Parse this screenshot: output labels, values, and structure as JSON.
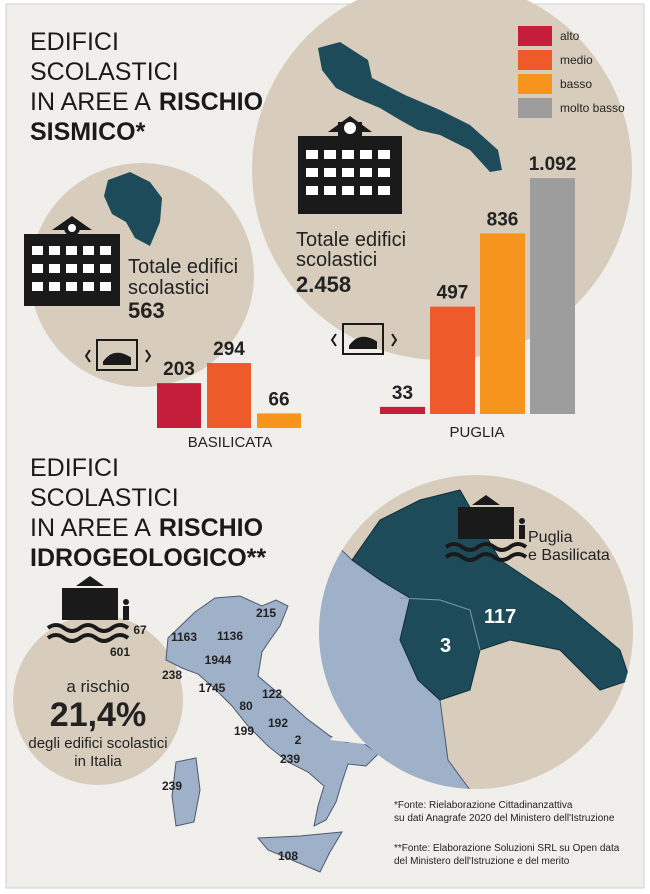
{
  "seismic_title": [
    "EDIFICI",
    "SCOLASTICI",
    "IN AREE A",
    "RISCHIO",
    "SISMICO*"
  ],
  "chart_data": [
    {
      "type": "bar",
      "region": "BASILICATA",
      "categories": [
        null,
        null,
        null
      ],
      "values": [
        203,
        294,
        66
      ],
      "colors": [
        "#c41e3a",
        "#ef5a2a",
        "#f7941d"
      ],
      "total_label": [
        "Totale edifici",
        "scolastici"
      ],
      "total": "563"
    },
    {
      "type": "bar",
      "region": "PUGLIA",
      "categories": [
        "alto",
        "medio",
        "basso",
        "molto basso"
      ],
      "values": [
        33,
        497,
        836,
        1092
      ],
      "value_labels": [
        "33",
        "497",
        "836",
        "1.092"
      ],
      "colors": [
        "#c41e3a",
        "#ef5a2a",
        "#f7941d",
        "#9d9d9d"
      ],
      "total_label": [
        "Totale edifici",
        "scolastici"
      ],
      "total": "2.458"
    }
  ],
  "hydro": {
    "title": [
      "EDIFICI",
      "SCOLASTICI",
      "IN AREE A",
      "RISCHIO",
      "IDROGEOLOGICO**"
    ],
    "risk_text": [
      "a rischio",
      "21,4%",
      "degli edifici scolastici",
      "in Italia"
    ],
    "regions": [
      215,
      67,
      1163,
      1136,
      601,
      1944,
      238,
      1745,
      122,
      80,
      192,
      199,
      2,
      239,
      239,
      108
    ],
    "inset_label": [
      "Puglia",
      "e Basilicata"
    ],
    "inset_values": [
      3,
      117
    ]
  },
  "footnotes": [
    [
      "*Fonte: Rielaborazione Cittadinanzattiva",
      "su dati Anagrafe 2020 del Ministero dell'Istruzione"
    ],
    [
      "**Fonte: Elaborazione Soluzioni SRL su Open data",
      "del Ministero dell'Istruzione e del merito"
    ]
  ]
}
